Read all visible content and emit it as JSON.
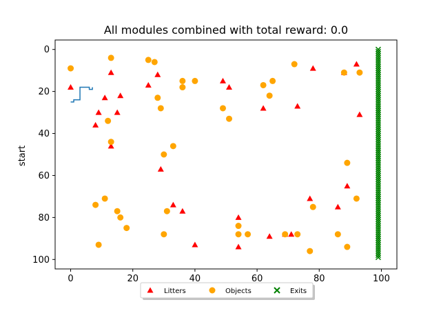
{
  "chart_data": {
    "type": "scatter",
    "title": "All modules combined with total reward: 0.0",
    "xlabel": "",
    "ylabel": "start",
    "xlim": [
      -5,
      105
    ],
    "ylim": [
      104.5,
      -4.5
    ],
    "y_inverted": true,
    "xticks": [
      0,
      20,
      40,
      60,
      80,
      100
    ],
    "yticks": [
      0,
      20,
      40,
      60,
      80,
      100
    ],
    "grid": false,
    "legend_placement": "bottom-center",
    "colors": {
      "litters": "#ff0000",
      "objects": "#ffa500",
      "exits": "#008000",
      "path": "#1f77b4"
    },
    "series": [
      {
        "name": "Litters",
        "marker": "triangle",
        "color": "#ff0000",
        "points": [
          [
            0,
            18
          ],
          [
            8,
            36
          ],
          [
            9,
            30
          ],
          [
            11,
            23
          ],
          [
            13,
            11
          ],
          [
            13,
            46
          ],
          [
            15,
            30
          ],
          [
            16,
            22
          ],
          [
            25,
            17
          ],
          [
            28,
            12
          ],
          [
            29,
            57
          ],
          [
            33,
            74
          ],
          [
            36,
            77
          ],
          [
            40,
            93
          ],
          [
            49,
            15
          ],
          [
            51,
            18
          ],
          [
            54,
            80
          ],
          [
            54,
            94
          ],
          [
            62,
            28
          ],
          [
            64,
            89
          ],
          [
            69,
            88
          ],
          [
            71,
            88
          ],
          [
            73,
            27
          ],
          [
            77,
            71
          ],
          [
            78,
            9
          ],
          [
            86,
            75
          ],
          [
            88,
            11
          ],
          [
            89,
            65
          ],
          [
            92,
            7
          ],
          [
            93,
            31
          ]
        ]
      },
      {
        "name": "Objects",
        "marker": "circle",
        "color": "#ffa500",
        "points": [
          [
            0,
            9
          ],
          [
            8,
            74
          ],
          [
            9,
            93
          ],
          [
            11,
            71
          ],
          [
            12,
            34
          ],
          [
            13,
            4
          ],
          [
            13,
            44
          ],
          [
            15,
            77
          ],
          [
            16,
            80
          ],
          [
            18,
            85
          ],
          [
            25,
            5
          ],
          [
            27,
            6
          ],
          [
            28,
            23
          ],
          [
            29,
            28
          ],
          [
            30,
            50
          ],
          [
            30,
            88
          ],
          [
            31,
            77
          ],
          [
            33,
            46
          ],
          [
            36,
            15
          ],
          [
            36,
            18
          ],
          [
            40,
            15
          ],
          [
            49,
            28
          ],
          [
            51,
            33
          ],
          [
            54,
            84
          ],
          [
            54,
            88
          ],
          [
            57,
            88
          ],
          [
            62,
            17
          ],
          [
            64,
            22
          ],
          [
            65,
            15
          ],
          [
            69,
            88
          ],
          [
            72,
            7
          ],
          [
            73,
            88
          ],
          [
            77,
            96
          ],
          [
            78,
            75
          ],
          [
            86,
            88
          ],
          [
            88,
            11
          ],
          [
            89,
            54
          ],
          [
            89,
            94
          ],
          [
            92,
            71
          ],
          [
            93,
            11
          ]
        ]
      },
      {
        "name": "Exits",
        "marker": "x",
        "color": "#008000",
        "x": 99,
        "y_range": [
          0,
          99
        ]
      },
      {
        "name": "",
        "type": "line",
        "step": true,
        "color": "#1f77b4",
        "points": [
          [
            0,
            25
          ],
          [
            1,
            25
          ],
          [
            1,
            24
          ],
          [
            3,
            24
          ],
          [
            3,
            21
          ],
          [
            3,
            18
          ],
          [
            6,
            18
          ],
          [
            6,
            19
          ],
          [
            7,
            19
          ],
          [
            7,
            18
          ]
        ]
      }
    ]
  },
  "legend": {
    "litters": "Litters",
    "objects": "Objects",
    "exits": "Exits"
  }
}
